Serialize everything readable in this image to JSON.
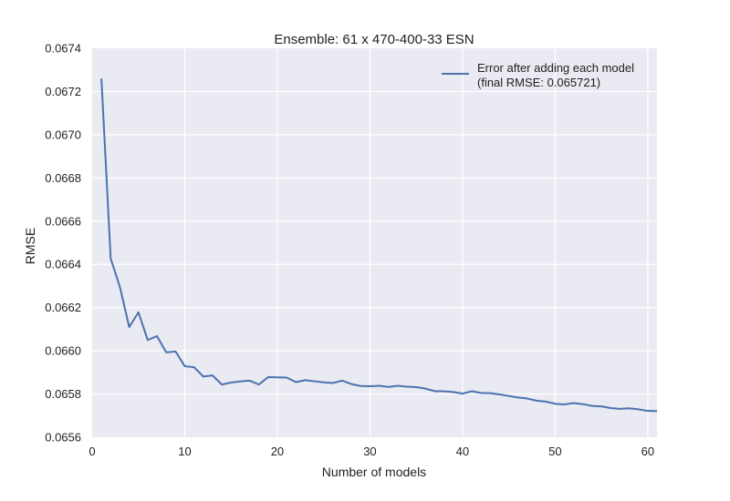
{
  "chart_data": {
    "type": "line",
    "title": "Ensemble: 61 x 470-400-33 ESN",
    "xlabel": "Number of models",
    "ylabel": "RMSE",
    "xlim": [
      0,
      61
    ],
    "ylim": [
      0.0656,
      0.0674
    ],
    "xticks": [
      "0",
      "10",
      "20",
      "30",
      "40",
      "50",
      "60"
    ],
    "yticks": [
      "0.0656",
      "0.0658",
      "0.0660",
      "0.0662",
      "0.0664",
      "0.0666",
      "0.0668",
      "0.0670",
      "0.0672",
      "0.0674"
    ],
    "grid": true,
    "legend_position": "top-right",
    "legend_lines": [
      "Error after adding each model",
      "(final RMSE: 0.065721)"
    ],
    "series": [
      {
        "color": "#4c72b0",
        "x": [
          1,
          2,
          3,
          4,
          5,
          6,
          7,
          8,
          9,
          10,
          11,
          12,
          13,
          14,
          15,
          16,
          17,
          18,
          19,
          20,
          21,
          22,
          23,
          24,
          25,
          26,
          27,
          28,
          29,
          30,
          31,
          32,
          33,
          34,
          35,
          36,
          37,
          38,
          39,
          40,
          41,
          42,
          43,
          44,
          45,
          46,
          47,
          48,
          49,
          50,
          51,
          52,
          53,
          54,
          55,
          56,
          57,
          58,
          59,
          60,
          61
        ],
        "y": [
          0.06726,
          0.066427,
          0.066295,
          0.06611,
          0.066178,
          0.06605,
          0.066068,
          0.065993,
          0.065997,
          0.065929,
          0.065924,
          0.065881,
          0.065886,
          0.065844,
          0.065853,
          0.065858,
          0.065862,
          0.065844,
          0.065878,
          0.065877,
          0.065876,
          0.065855,
          0.065864,
          0.065859,
          0.065854,
          0.065851,
          0.065862,
          0.065846,
          0.065837,
          0.065836,
          0.065838,
          0.065833,
          0.065838,
          0.065834,
          0.065832,
          0.065825,
          0.065813,
          0.065813,
          0.065809,
          0.065802,
          0.065813,
          0.065805,
          0.065804,
          0.065798,
          0.065791,
          0.065784,
          0.065779,
          0.065769,
          0.065765,
          0.065755,
          0.065752,
          0.065758,
          0.065753,
          0.065745,
          0.065743,
          0.065735,
          0.065731,
          0.065734,
          0.065729,
          0.065722,
          0.065721
        ]
      }
    ]
  }
}
